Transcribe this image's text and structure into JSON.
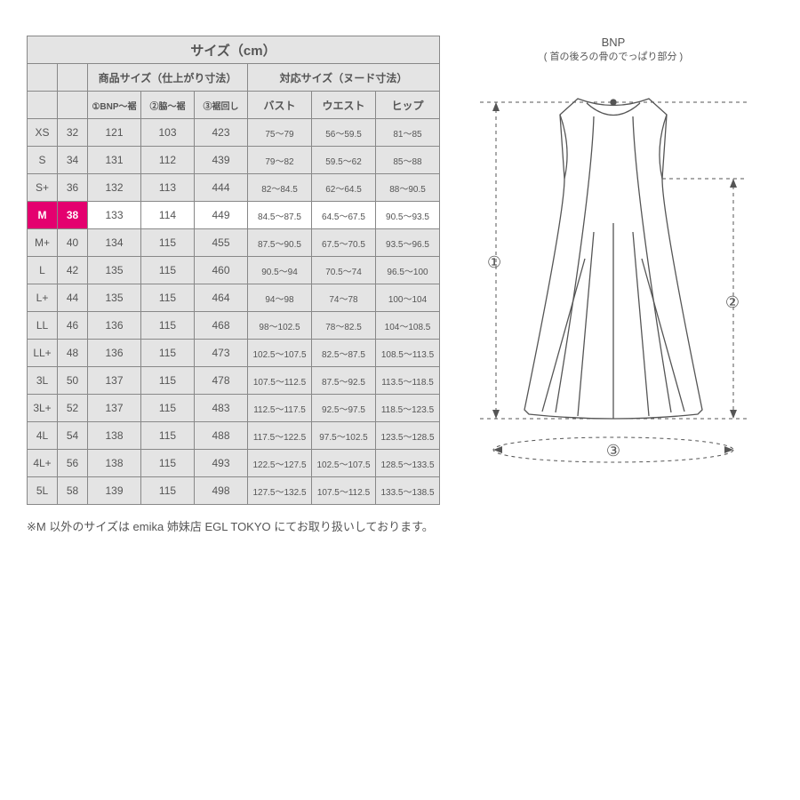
{
  "title": "サイズ（cm）",
  "header_group_product": "商品サイズ（仕上がり寸法）",
  "header_group_body": "対応サイズ（ヌード寸法）",
  "header_m1": "①BNP～裾",
  "header_m2": "②脇～裾",
  "header_m3": "③裾回し",
  "header_b1": "バスト",
  "header_b2": "ウエスト",
  "header_b3": "ヒップ",
  "rows": [
    {
      "size": "XS",
      "num": "32",
      "m1": "121",
      "m2": "103",
      "m3": "423",
      "b1": "75～79",
      "b2": "56～59.5",
      "b3": "81～85",
      "hl": false
    },
    {
      "size": "S",
      "num": "34",
      "m1": "131",
      "m2": "112",
      "m3": "439",
      "b1": "79～82",
      "b2": "59.5～62",
      "b3": "85～88",
      "hl": false
    },
    {
      "size": "S+",
      "num": "36",
      "m1": "132",
      "m2": "113",
      "m3": "444",
      "b1": "82～84.5",
      "b2": "62～64.5",
      "b3": "88～90.5",
      "hl": false
    },
    {
      "size": "M",
      "num": "38",
      "m1": "133",
      "m2": "114",
      "m3": "449",
      "b1": "84.5～87.5",
      "b2": "64.5～67.5",
      "b3": "90.5～93.5",
      "hl": true
    },
    {
      "size": "M+",
      "num": "40",
      "m1": "134",
      "m2": "115",
      "m3": "455",
      "b1": "87.5～90.5",
      "b2": "67.5～70.5",
      "b3": "93.5～96.5",
      "hl": false
    },
    {
      "size": "L",
      "num": "42",
      "m1": "135",
      "m2": "115",
      "m3": "460",
      "b1": "90.5～94",
      "b2": "70.5～74",
      "b3": "96.5～100",
      "hl": false
    },
    {
      "size": "L+",
      "num": "44",
      "m1": "135",
      "m2": "115",
      "m3": "464",
      "b1": "94～98",
      "b2": "74～78",
      "b3": "100～104",
      "hl": false
    },
    {
      "size": "LL",
      "num": "46",
      "m1": "136",
      "m2": "115",
      "m3": "468",
      "b1": "98～102.5",
      "b2": "78～82.5",
      "b3": "104～108.5",
      "hl": false
    },
    {
      "size": "LL+",
      "num": "48",
      "m1": "136",
      "m2": "115",
      "m3": "473",
      "b1": "102.5～107.5",
      "b2": "82.5～87.5",
      "b3": "108.5～113.5",
      "hl": false
    },
    {
      "size": "3L",
      "num": "50",
      "m1": "137",
      "m2": "115",
      "m3": "478",
      "b1": "107.5～112.5",
      "b2": "87.5～92.5",
      "b3": "113.5～118.5",
      "hl": false
    },
    {
      "size": "3L+",
      "num": "52",
      "m1": "137",
      "m2": "115",
      "m3": "483",
      "b1": "112.5～117.5",
      "b2": "92.5～97.5",
      "b3": "118.5～123.5",
      "hl": false
    },
    {
      "size": "4L",
      "num": "54",
      "m1": "138",
      "m2": "115",
      "m3": "488",
      "b1": "117.5～122.5",
      "b2": "97.5～102.5",
      "b3": "123.5～128.5",
      "hl": false
    },
    {
      "size": "4L+",
      "num": "56",
      "m1": "138",
      "m2": "115",
      "m3": "493",
      "b1": "122.5～127.5",
      "b2": "102.5～107.5",
      "b3": "128.5～133.5",
      "hl": false
    },
    {
      "size": "5L",
      "num": "58",
      "m1": "139",
      "m2": "115",
      "m3": "498",
      "b1": "127.5～132.5",
      "b2": "107.5～112.5",
      "b3": "133.5～138.5",
      "hl": false
    }
  ],
  "note": "※M 以外のサイズは emika 姉妹店 EGL TOKYO にてお取り扱いしております。",
  "diagram": {
    "bnp_title": "BNP",
    "bnp_sub": "( 首の後ろの骨のでっぱり部分 )",
    "label1": "①",
    "label2": "②",
    "label3": "③",
    "stroke": "#555555",
    "dash": "4,4"
  },
  "colors": {
    "border": "#888888",
    "cell_bg": "#e4e4e4",
    "highlight_bg": "#e4006f",
    "highlight_fg": "#ffffff",
    "text": "#555555"
  }
}
